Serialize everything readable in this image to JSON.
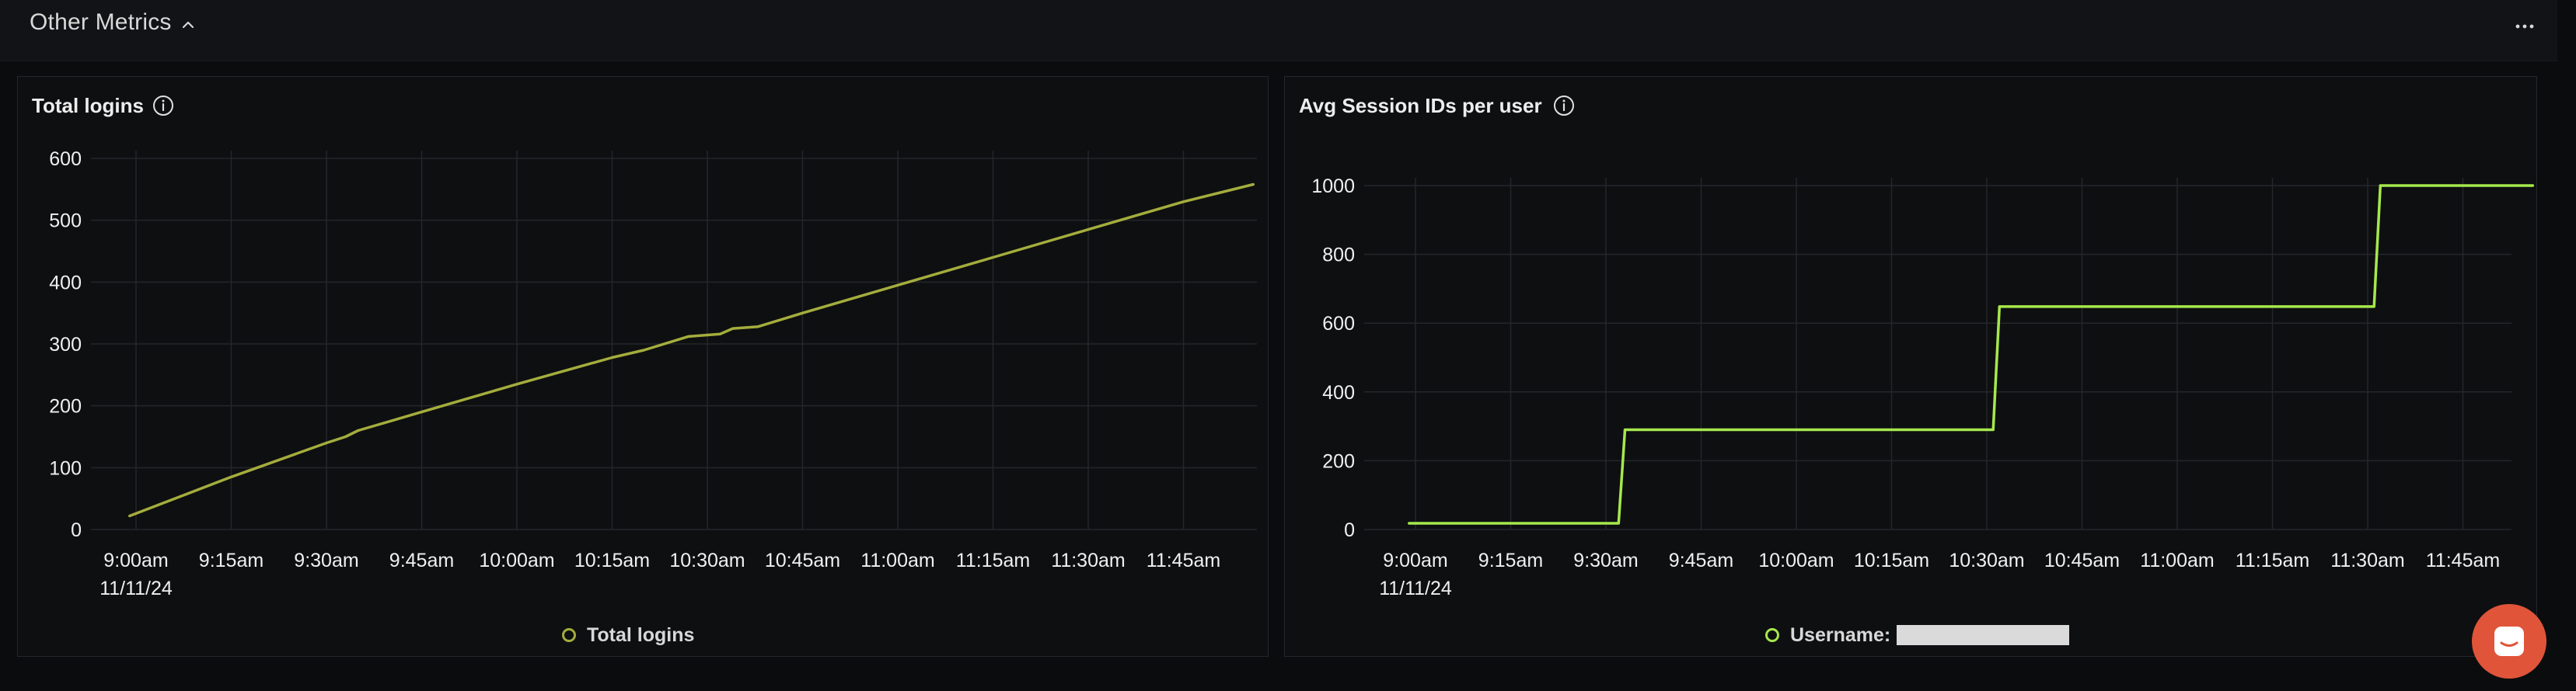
{
  "section": {
    "title": "Other Metrics"
  },
  "panels": [
    {
      "title": "Total logins",
      "legend": {
        "label": "Total logins",
        "color": "#a4ad3c"
      },
      "chart_data": {
        "type": "line",
        "title": "Total logins",
        "x_ticks": [
          "9:00am",
          "9:15am",
          "9:30am",
          "9:45am",
          "10:00am",
          "10:15am",
          "10:30am",
          "10:45am",
          "11:00am",
          "11:15am",
          "11:30am",
          "11:45am"
        ],
        "x_date_label": "11/11/24",
        "y_ticks": [
          0,
          100,
          200,
          300,
          400,
          500,
          600
        ],
        "ylim": [
          0,
          600
        ],
        "grid": true,
        "legend_position": "bottom",
        "series": [
          {
            "name": "Total logins",
            "color": "#a4ad3c",
            "x": [
              "8:59am",
              "9:15am",
              "9:30am",
              "9:33am",
              "9:35am",
              "9:45am",
              "10:00am",
              "10:15am",
              "10:20am",
              "10:27am",
              "10:32am",
              "10:34am",
              "10:38am",
              "10:45am",
              "11:00am",
              "11:15am",
              "11:30am",
              "11:45am",
              "11:56am"
            ],
            "y": [
              22,
              85,
              140,
              150,
              160,
              190,
              235,
              278,
              290,
              312,
              316,
              325,
              328,
              350,
              395,
              440,
              485,
              530,
              558
            ]
          }
        ]
      }
    },
    {
      "title": "Avg Session IDs per user",
      "legend": {
        "label": "Username:",
        "color": "#a6e84c"
      },
      "chart_data": {
        "type": "line",
        "title": "Avg Session IDs per user",
        "x_ticks": [
          "9:00am",
          "9:15am",
          "9:30am",
          "9:45am",
          "10:00am",
          "10:15am",
          "10:30am",
          "10:45am",
          "11:00am",
          "11:15am",
          "11:30am",
          "11:45am"
        ],
        "x_date_label": "11/11/24",
        "y_ticks": [
          0,
          200,
          400,
          600,
          800,
          1000
        ],
        "ylim": [
          0,
          1000
        ],
        "grid": true,
        "legend_position": "bottom",
        "series": [
          {
            "name": "Username:",
            "color": "#a6e84c",
            "x": [
              "8:59am",
              "9:32am",
              "9:33am",
              "10:31am",
              "10:32am",
              "11:31am",
              "11:32am",
              "11:56am"
            ],
            "y": [
              18,
              18,
              290,
              290,
              648,
              648,
              1000,
              1000
            ]
          }
        ]
      }
    }
  ]
}
